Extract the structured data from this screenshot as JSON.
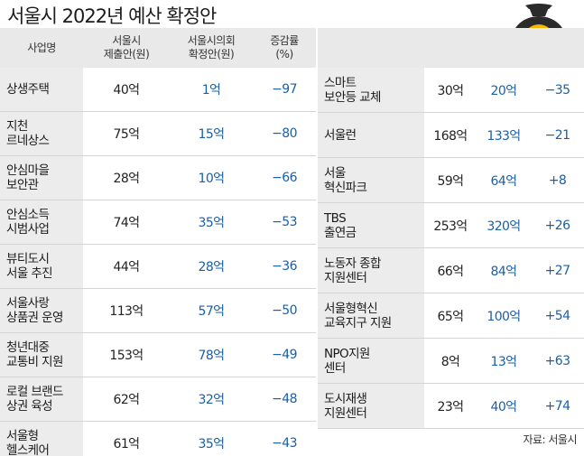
{
  "title": "서울시 2022년 예산 확정안",
  "headers": {
    "name": "사업명",
    "submitted": "서울시\n제출안(원)",
    "final": "서울시의회\n확정안(원)",
    "rate": "증감률\n(%)"
  },
  "left_rows": [
    {
      "name": "상생주택",
      "submitted": "40억",
      "final": "1억",
      "rate": "−97"
    },
    {
      "name": "지천\n르네상스",
      "submitted": "75억",
      "final": "15억",
      "rate": "−80"
    },
    {
      "name": "안심마을\n보안관",
      "submitted": "28억",
      "final": "10억",
      "rate": "−66"
    },
    {
      "name": "안심소득\n시범사업",
      "submitted": "74억",
      "final": "35억",
      "rate": "−53"
    },
    {
      "name": "뷰티도시\n서울 추진",
      "submitted": "44억",
      "final": "28억",
      "rate": "−36"
    },
    {
      "name": "서울사랑\n상품권 운영",
      "submitted": "113억",
      "final": "57억",
      "rate": "−50"
    },
    {
      "name": "청년대중\n교통비 지원",
      "submitted": "153억",
      "final": "78억",
      "rate": "−49"
    },
    {
      "name": "로컬 브랜드\n상권 육성",
      "submitted": "62억",
      "final": "32억",
      "rate": "−48"
    },
    {
      "name": "서울형\n헬스케어",
      "submitted": "61억",
      "final": "35억",
      "rate": "−43"
    }
  ],
  "right_rows": [
    {
      "name": "스마트\n보안등 교체",
      "submitted": "30억",
      "final": "20억",
      "rate": "−35"
    },
    {
      "name": "서울런",
      "submitted": "168억",
      "final": "133억",
      "rate": "−21"
    },
    {
      "name": "서울\n혁신파크",
      "submitted": "59억",
      "final": "64억",
      "rate": "+8"
    },
    {
      "name": "TBS\n출연금",
      "submitted": "253억",
      "final": "320억",
      "rate": "+26"
    },
    {
      "name": "노동자 종합\n지원센터",
      "submitted": "66억",
      "final": "84억",
      "rate": "+27"
    },
    {
      "name": "서울형혁신\n교육지구 지원",
      "submitted": "65억",
      "final": "100억",
      "rate": "+54"
    },
    {
      "name": "NPO지원\n센터",
      "submitted": "8억",
      "final": "13억",
      "rate": "+63"
    },
    {
      "name": "도시재생\n지원센터",
      "submitted": "23억",
      "final": "40억",
      "rate": "+74"
    }
  ],
  "source": "자료: 서울시",
  "icon": {
    "name": "money-bag-icon",
    "symbol": "₩",
    "bag_color": "#2b2b2b",
    "symbol_color": "#f5b800"
  }
}
